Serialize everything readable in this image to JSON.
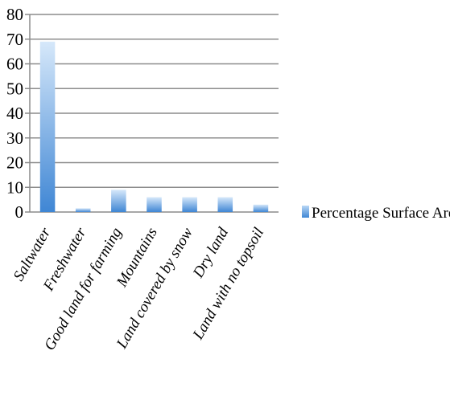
{
  "chart_data": {
    "type": "bar",
    "title": "",
    "xlabel": "",
    "ylabel": "",
    "ylim": [
      0,
      80
    ],
    "yticks": [
      0,
      10,
      20,
      30,
      40,
      50,
      60,
      70,
      80
    ],
    "grid": true,
    "legend_position": "right",
    "categories": [
      "Saltwater",
      "Freshwater",
      "Good land for farming",
      "Mountains",
      "Land covered by snow",
      "Dry land",
      "Land with no topsoil"
    ],
    "series": [
      {
        "name": "Percentage Surface Area",
        "values": [
          69,
          1.5,
          9,
          6,
          6,
          6,
          3
        ],
        "color": "#5b9bd5"
      }
    ]
  }
}
